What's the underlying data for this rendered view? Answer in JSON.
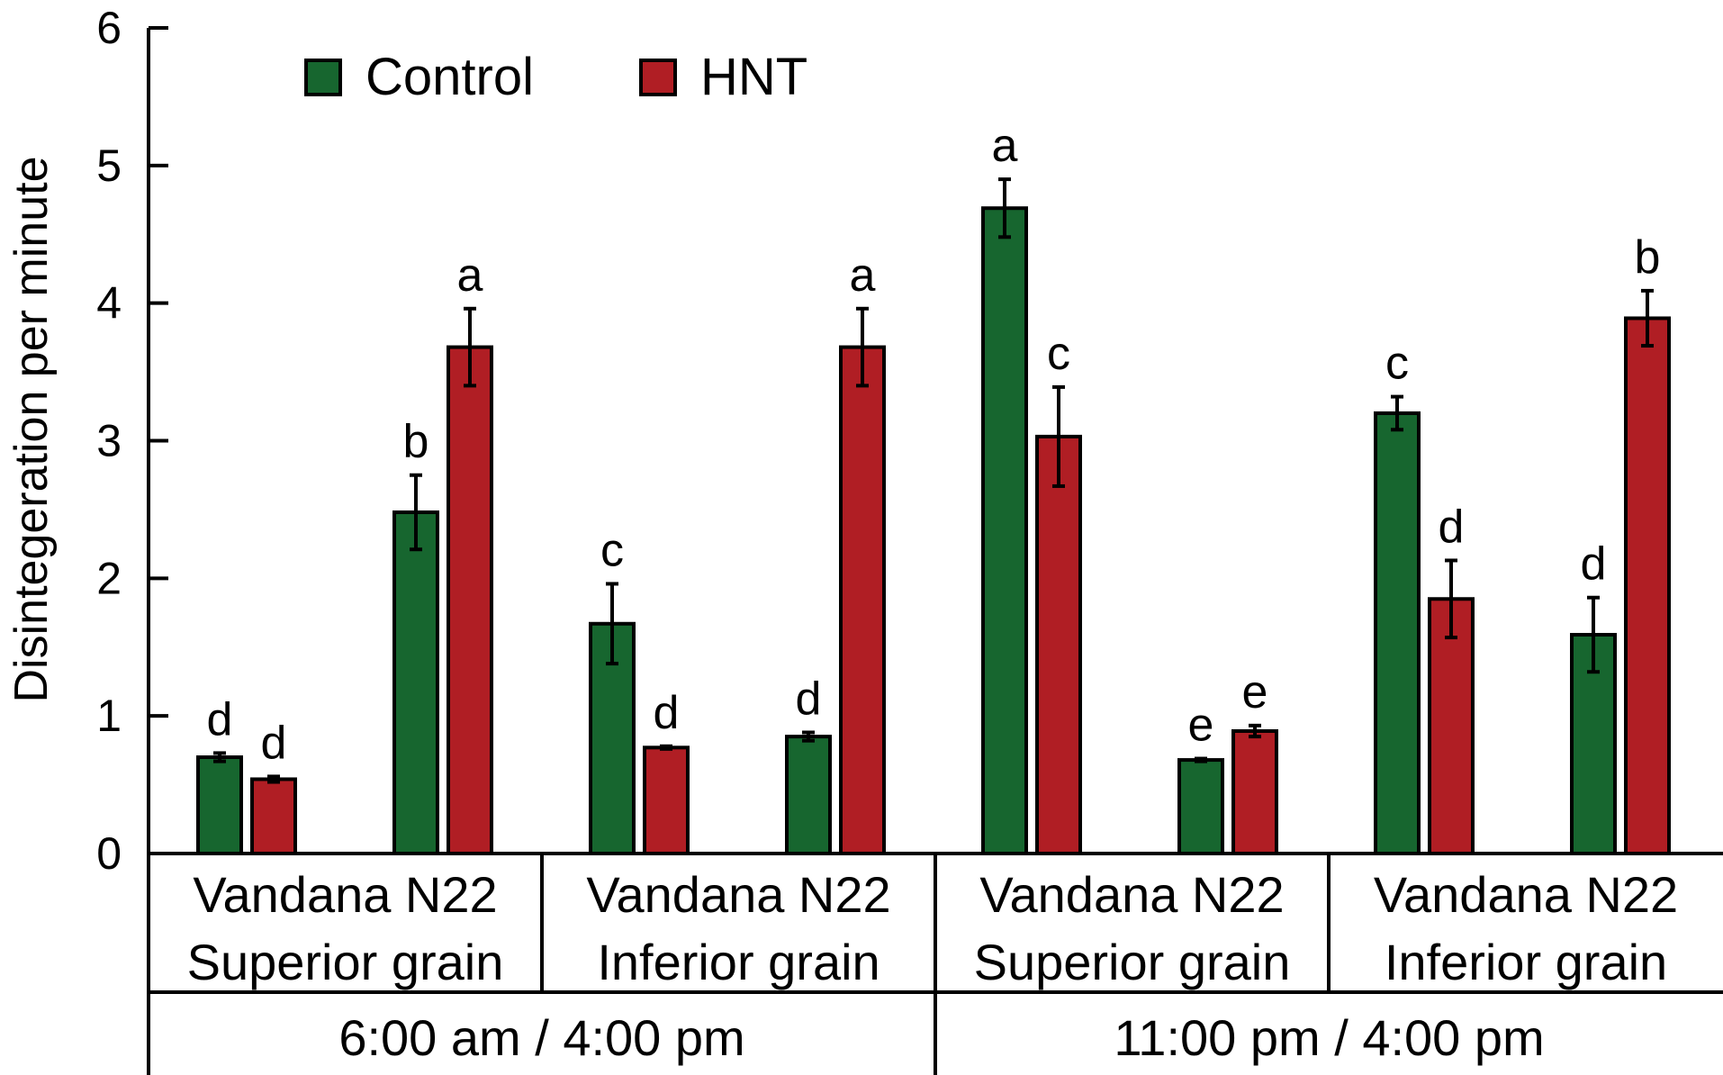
{
  "chart_data": {
    "type": "bar",
    "ylabel": "Disintegeration per minute",
    "ylim": [
      0,
      6
    ],
    "yticks": [
      "0",
      "1",
      "2",
      "3",
      "4",
      "5",
      "6"
    ],
    "grid": false,
    "legend": {
      "placement": "top-left"
    },
    "series": [
      {
        "name": "Control",
        "color": "#17662f"
      },
      {
        "name": "HNT",
        "color": "#b01e24"
      }
    ],
    "groups": [
      {
        "time": "6:00 am / 4:00 pm",
        "grain": "Superior grain",
        "cultivar": "Vandana",
        "values": [
          0.7,
          0.54
        ],
        "errors": [
          0.03,
          0.02
        ],
        "letters": [
          "d",
          "d"
        ]
      },
      {
        "time": "6:00 am / 4:00 pm",
        "grain": "Superior grain",
        "cultivar": "N22",
        "values": [
          2.48,
          3.68
        ],
        "errors": [
          0.27,
          0.28
        ],
        "letters": [
          "b",
          "a"
        ]
      },
      {
        "time": "6:00 am / 4:00 pm",
        "grain": "Inferior grain",
        "cultivar": "Vandana",
        "values": [
          1.67,
          0.77
        ],
        "errors": [
          0.29,
          0.01
        ],
        "letters": [
          "c",
          "d"
        ]
      },
      {
        "time": "6:00 am / 4:00 pm",
        "grain": "Inferior grain",
        "cultivar": "N22",
        "values": [
          0.85,
          3.68
        ],
        "errors": [
          0.03,
          0.28
        ],
        "letters": [
          "d",
          "a"
        ]
      },
      {
        "time": "11:00 pm / 4:00 pm",
        "grain": "Superior grain",
        "cultivar": "Vandana",
        "values": [
          4.69,
          3.03
        ],
        "errors": [
          0.21,
          0.36
        ],
        "letters": [
          "a",
          "c"
        ]
      },
      {
        "time": "11:00 pm / 4:00 pm",
        "grain": "Superior grain",
        "cultivar": "N22",
        "values": [
          0.68,
          0.89
        ],
        "errors": [
          0.01,
          0.04
        ],
        "letters": [
          "e",
          "e"
        ]
      },
      {
        "time": "11:00 pm / 4:00 pm",
        "grain": "Inferior grain",
        "cultivar": "Vandana",
        "values": [
          3.2,
          1.85
        ],
        "errors": [
          0.12,
          0.28
        ],
        "letters": [
          "c",
          "d"
        ]
      },
      {
        "time": "11:00 pm / 4:00 pm",
        "grain": "Inferior grain",
        "cultivar": "N22",
        "values": [
          1.59,
          3.89
        ],
        "errors": [
          0.27,
          0.2
        ],
        "letters": [
          "d",
          "b"
        ]
      }
    ],
    "grain_labels": [
      {
        "cultivars": "Vandana  N22",
        "grain": "Superior grain"
      },
      {
        "cultivars": "Vandana N22",
        "grain": "Inferior grain"
      },
      {
        "cultivars": "Vandana N22",
        "grain": "Superior grain"
      },
      {
        "cultivars": "Vandana N22",
        "grain": "Inferior grain"
      }
    ],
    "time_labels": [
      "6:00 am / 4:00 pm",
      "11:00 pm / 4:00 pm"
    ]
  }
}
